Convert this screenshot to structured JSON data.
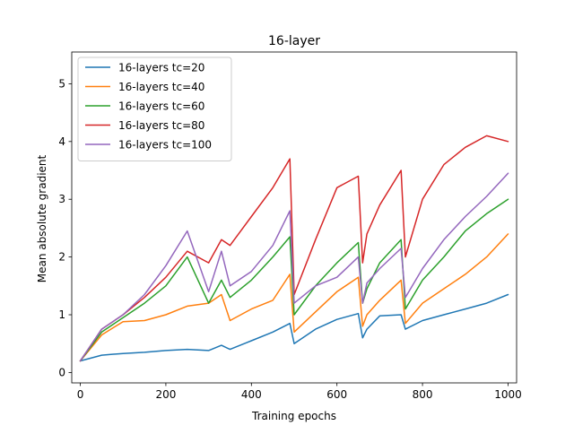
{
  "chart_data": {
    "type": "line",
    "title": "16-layer",
    "xlabel": "Training epochs",
    "ylabel": "Mean absolute gradient",
    "xlim": [
      -20,
      1020
    ],
    "ylim": [
      -0.18,
      5.55
    ],
    "xticks": [
      0,
      200,
      400,
      600,
      800,
      1000
    ],
    "yticks": [
      0,
      1,
      2,
      3,
      4,
      5
    ],
    "grid": false,
    "legend_position": "upper-left",
    "x": [
      0,
      50,
      100,
      150,
      200,
      250,
      300,
      330,
      350,
      400,
      450,
      490,
      500,
      550,
      600,
      650,
      660,
      670,
      700,
      750,
      760,
      800,
      850,
      900,
      950,
      1000
    ],
    "series": [
      {
        "name": "16-layers tc=20",
        "color": "#1f77b4",
        "values": [
          0.2,
          0.3,
          0.33,
          0.35,
          0.38,
          0.4,
          0.38,
          0.47,
          0.4,
          0.55,
          0.7,
          0.85,
          0.5,
          0.75,
          0.92,
          1.02,
          0.6,
          0.75,
          0.98,
          1.0,
          0.75,
          0.9,
          1.0,
          1.1,
          1.2,
          1.35
        ]
      },
      {
        "name": "16-layers tc=40",
        "color": "#ff7f0e",
        "values": [
          0.2,
          0.65,
          0.88,
          0.9,
          1.0,
          1.15,
          1.2,
          1.35,
          0.9,
          1.1,
          1.25,
          1.7,
          0.7,
          1.05,
          1.4,
          1.65,
          0.8,
          1.0,
          1.25,
          1.6,
          0.85,
          1.2,
          1.45,
          1.7,
          2.0,
          2.4
        ]
      },
      {
        "name": "16-layers tc=60",
        "color": "#2ca02c",
        "values": [
          0.2,
          0.7,
          0.95,
          1.2,
          1.5,
          2.0,
          1.2,
          1.6,
          1.3,
          1.6,
          2.0,
          2.35,
          1.0,
          1.5,
          1.9,
          2.25,
          1.2,
          1.45,
          1.9,
          2.3,
          1.1,
          1.6,
          2.0,
          2.45,
          2.75,
          3.0
        ]
      },
      {
        "name": "16-layers tc=80",
        "color": "#d62728",
        "values": [
          0.2,
          0.75,
          1.0,
          1.3,
          1.65,
          2.1,
          1.9,
          2.3,
          2.2,
          2.7,
          3.2,
          3.7,
          1.35,
          2.3,
          3.2,
          3.4,
          1.9,
          2.4,
          2.9,
          3.5,
          2.0,
          3.0,
          3.6,
          3.9,
          4.1,
          4.0
        ]
      },
      {
        "name": "16-layers tc=100",
        "color": "#9467bd",
        "values": [
          0.2,
          0.75,
          1.0,
          1.35,
          1.85,
          2.45,
          1.4,
          2.1,
          1.5,
          1.75,
          2.2,
          2.8,
          1.2,
          1.5,
          1.65,
          2.0,
          1.2,
          1.55,
          1.8,
          2.15,
          1.3,
          1.8,
          2.3,
          2.7,
          3.05,
          3.45
        ]
      }
    ]
  }
}
